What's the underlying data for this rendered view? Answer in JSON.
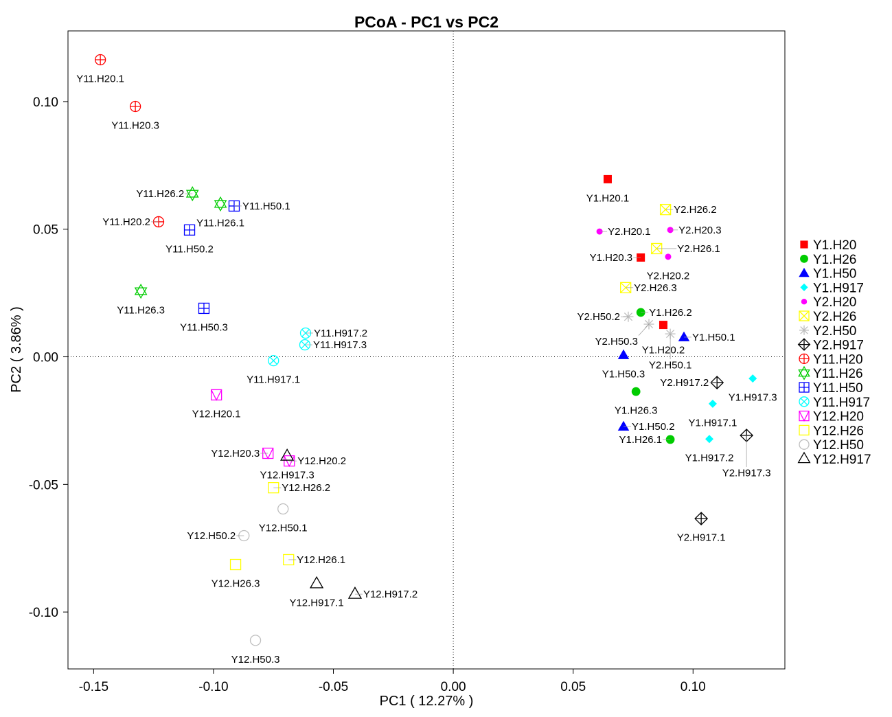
{
  "chart_data": {
    "type": "scatter",
    "title": "PCoA - PC1 vs PC2",
    "xlabel": "PC1 ( 12.27% )",
    "ylabel": "PC2 ( 3.86% )",
    "xlim": [
      -0.1607,
      0.1383
    ],
    "ylim": [
      -0.1223,
      0.1277
    ],
    "xticks": [
      -0.15,
      -0.1,
      -0.05,
      0.0,
      0.05,
      0.1
    ],
    "xtick_labels": [
      "-0.15",
      "-0.10",
      "-0.05",
      "0.00",
      "0.05",
      "0.10"
    ],
    "yticks": [
      -0.1,
      -0.05,
      0.0,
      0.05,
      0.1
    ],
    "ytick_labels": [
      "-0.10",
      "-0.05",
      "0.00",
      "0.05",
      "0.10"
    ],
    "reference_lines": {
      "x": 0,
      "y": 0,
      "style": "dotted"
    },
    "grid": false,
    "legend_position": "right",
    "series": [
      {
        "name": "Y1.H20",
        "color": "#ff0000",
        "marker": "filled-square",
        "points": [
          {
            "label": "Y1.H20.1",
            "x": 0.0644,
            "y": 0.0696
          },
          {
            "label": "Y1.H20.3",
            "x": 0.0782,
            "y": 0.0389
          },
          {
            "label": "Y1.H20.2",
            "x": 0.0876,
            "y": 0.0125
          }
        ]
      },
      {
        "name": "Y1.H26",
        "color": "#00cc00",
        "marker": "filled-circle",
        "points": [
          {
            "label": "Y1.H26.2",
            "x": 0.0782,
            "y": 0.0174
          },
          {
            "label": "Y1.H26.3",
            "x": 0.0762,
            "y": -0.0136
          },
          {
            "label": "Y1.H26.1",
            "x": 0.0905,
            "y": -0.0324
          }
        ]
      },
      {
        "name": "Y1.H50",
        "color": "#0000ff",
        "marker": "filled-triangle",
        "points": [
          {
            "label": "Y1.H50.1",
            "x": 0.0962,
            "y": 0.0077
          },
          {
            "label": "Y1.H50.3",
            "x": 0.071,
            "y": 0.0007
          },
          {
            "label": "Y1.H50.2",
            "x": 0.071,
            "y": -0.0273
          }
        ]
      },
      {
        "name": "Y1.H917",
        "color": "#00ffff",
        "marker": "filled-diamond",
        "points": [
          {
            "label": "Y1.H917.3",
            "x": 0.1249,
            "y": -0.0085
          },
          {
            "label": "Y1.H917.1",
            "x": 0.1082,
            "y": -0.0184
          },
          {
            "label": "Y1.H917.2",
            "x": 0.1068,
            "y": -0.0322
          }
        ]
      },
      {
        "name": "Y2.H20",
        "color": "#ff00ff",
        "marker": "small-dot",
        "points": [
          {
            "label": "Y2.H20.1",
            "x": 0.061,
            "y": 0.0491
          },
          {
            "label": "Y2.H20.3",
            "x": 0.0905,
            "y": 0.0497
          },
          {
            "label": "Y2.H20.2",
            "x": 0.0896,
            "y": 0.0392
          }
        ]
      },
      {
        "name": "Y2.H26",
        "color": "#ffff00",
        "marker": "square-x",
        "points": [
          {
            "label": "Y2.H26.2",
            "x": 0.0885,
            "y": 0.0577
          },
          {
            "label": "Y2.H26.1",
            "x": 0.0848,
            "y": 0.0424
          },
          {
            "label": "Y2.H26.3",
            "x": 0.0719,
            "y": 0.0271
          }
        ]
      },
      {
        "name": "Y2.H50",
        "color": "#bebebe",
        "marker": "asterisk",
        "points": [
          {
            "label": "Y2.H50.2",
            "x": 0.073,
            "y": 0.0157
          },
          {
            "label": "Y2.H50.3",
            "x": 0.0816,
            "y": 0.0128
          },
          {
            "label": "Y2.H50.1",
            "x": 0.0905,
            "y": 0.009
          }
        ]
      },
      {
        "name": "Y2.H917",
        "color": "#000000",
        "marker": "diamond-plus",
        "points": [
          {
            "label": "Y2.H917.2",
            "x": 0.11,
            "y": -0.0101
          },
          {
            "label": "Y2.H917.3",
            "x": 0.1223,
            "y": -0.0308
          },
          {
            "label": "Y2.H917.1",
            "x": 0.1034,
            "y": -0.0634
          }
        ]
      },
      {
        "name": "Y11.H20",
        "color": "#ff0000",
        "marker": "circle-plus",
        "points": [
          {
            "label": "Y11.H20.1",
            "x": -0.1472,
            "y": 0.1164
          },
          {
            "label": "Y11.H20.3",
            "x": -0.1326,
            "y": 0.0981
          },
          {
            "label": "Y11.H20.2",
            "x": -0.1229,
            "y": 0.0529
          }
        ]
      },
      {
        "name": "Y11.H26",
        "color": "#00cc00",
        "marker": "star-of-david",
        "points": [
          {
            "label": "Y11.H26.2",
            "x": -0.1088,
            "y": 0.0639
          },
          {
            "label": "Y11.H26.1",
            "x": -0.0971,
            "y": 0.0599
          },
          {
            "label": "Y11.H26.3",
            "x": -0.1303,
            "y": 0.0257
          }
        ]
      },
      {
        "name": "Y11.H50",
        "color": "#0000ff",
        "marker": "square-plus",
        "points": [
          {
            "label": "Y11.H50.1",
            "x": -0.0914,
            "y": 0.0591
          },
          {
            "label": "Y11.H50.2",
            "x": -0.11,
            "y": 0.0497
          },
          {
            "label": "Y11.H50.3",
            "x": -0.104,
            "y": 0.019
          }
        ]
      },
      {
        "name": "Y11.H917",
        "color": "#00ffff",
        "marker": "circle-x",
        "points": [
          {
            "label": "Y11.H917.2",
            "x": -0.0616,
            "y": 0.0093
          },
          {
            "label": "Y11.H917.3",
            "x": -0.0619,
            "y": 0.0047
          },
          {
            "label": "Y11.H917.1",
            "x": -0.075,
            "y": -0.0015
          }
        ]
      },
      {
        "name": "Y12.H20",
        "color": "#ff00ff",
        "marker": "square-triangle-down",
        "points": [
          {
            "label": "Y12.H20.1",
            "x": -0.0988,
            "y": -0.0149
          },
          {
            "label": "Y12.H20.3",
            "x": -0.0773,
            "y": -0.0378
          },
          {
            "label": "Y12.H20.2",
            "x": -0.0684,
            "y": -0.0408
          }
        ]
      },
      {
        "name": "Y12.H26",
        "color": "#ffff00",
        "marker": "open-square",
        "points": [
          {
            "label": "Y12.H26.2",
            "x": -0.075,
            "y": -0.0513
          },
          {
            "label": "Y12.H26.1",
            "x": -0.0687,
            "y": -0.0795
          },
          {
            "label": "Y12.H26.3",
            "x": -0.0908,
            "y": -0.0814
          }
        ]
      },
      {
        "name": "Y12.H50",
        "color": "#bebebe",
        "marker": "open-circle",
        "points": [
          {
            "label": "Y12.H50.1",
            "x": -0.071,
            "y": -0.0596
          },
          {
            "label": "Y12.H50.2",
            "x": -0.0873,
            "y": -0.0701
          },
          {
            "label": "Y12.H50.3",
            "x": -0.0825,
            "y": -0.1111
          }
        ]
      },
      {
        "name": "Y12.H917",
        "color": "#000000",
        "marker": "open-triangle",
        "points": [
          {
            "label": "Y12.H917.3",
            "x": -0.0693,
            "y": -0.0389
          },
          {
            "label": "Y12.H917.1",
            "x": -0.057,
            "y": -0.0889
          },
          {
            "label": "Y12.H917.2",
            "x": -0.041,
            "y": -0.093
          }
        ]
      }
    ]
  }
}
